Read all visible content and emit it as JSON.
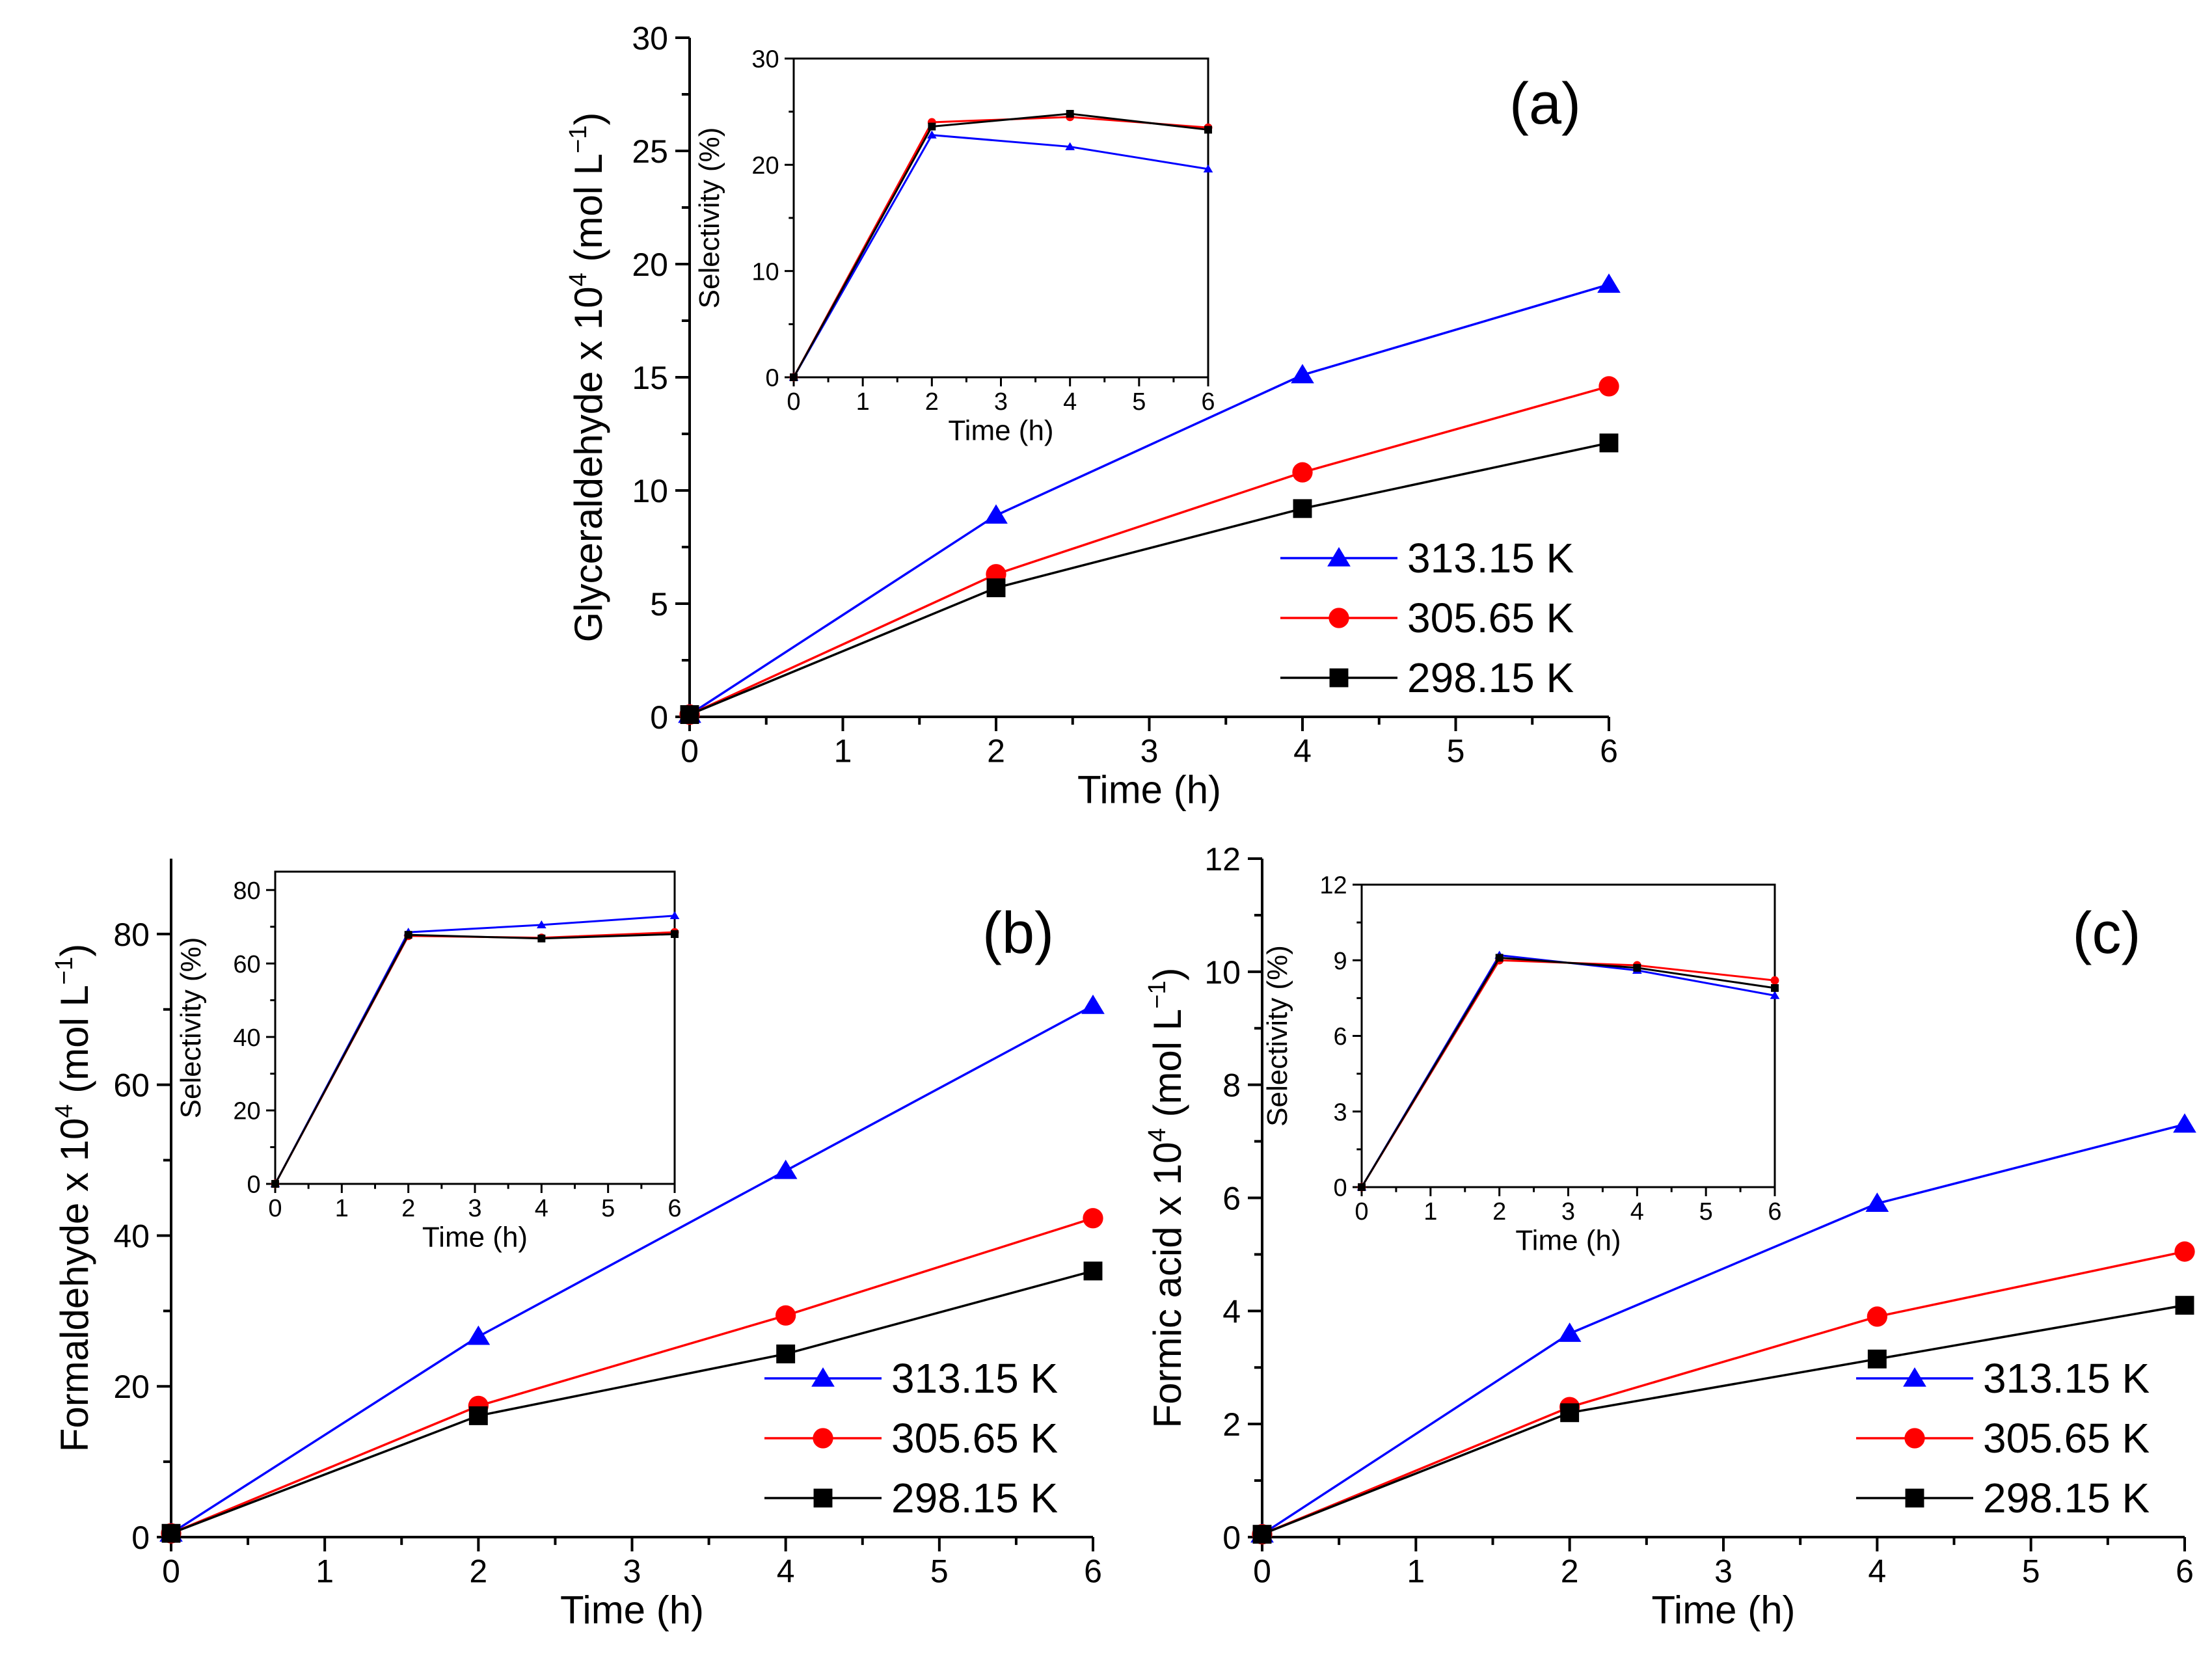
{
  "chart_data": [
    {
      "id": "a",
      "type": "line",
      "panel_label": "(a)",
      "xlabel": "Time (h)",
      "ylabel": "Glyceraldehyde x 10",
      "ylabel_sup": "4",
      "ylabel_unit": " (mol L",
      "ylabel_unit_sup": "−1",
      "ylabel_close": ")",
      "xlim": [
        0,
        6
      ],
      "ylim": [
        0,
        30
      ],
      "xticks": [
        0,
        1,
        2,
        3,
        4,
        5,
        6
      ],
      "yticks": [
        0,
        5,
        10,
        15,
        20,
        25,
        30
      ],
      "grid": false,
      "legend_position": "bottom-right",
      "series": [
        {
          "name": "313.15 K",
          "color": "#0000ff",
          "marker": "triangle",
          "x": [
            0,
            2,
            4,
            6
          ],
          "y": [
            0.1,
            8.9,
            15.1,
            19.1
          ]
        },
        {
          "name": "305.65 K",
          "color": "#ff0000",
          "marker": "circle",
          "x": [
            0,
            2,
            4,
            6
          ],
          "y": [
            0.1,
            6.3,
            10.8,
            14.6
          ]
        },
        {
          "name": "298.15 K",
          "color": "#000000",
          "marker": "square",
          "x": [
            0,
            2,
            4,
            6
          ],
          "y": [
            0.1,
            5.7,
            9.2,
            12.1
          ]
        }
      ],
      "inset": {
        "xlabel": "Time (h)",
        "ylabel": "Selectivity (%)",
        "xlim": [
          0,
          6
        ],
        "ylim": [
          0,
          30
        ],
        "xticks": [
          0,
          1,
          2,
          3,
          4,
          5,
          6
        ],
        "yticks": [
          0,
          10,
          20,
          30
        ],
        "series": [
          {
            "color": "#0000ff",
            "x": [
              0,
              2,
              4,
              6
            ],
            "y": [
              0,
              22.8,
              21.7,
              19.6
            ]
          },
          {
            "color": "#ff0000",
            "x": [
              0,
              2,
              4,
              6
            ],
            "y": [
              0,
              24.0,
              24.5,
              23.5
            ]
          },
          {
            "color": "#000000",
            "x": [
              0,
              2,
              4,
              6
            ],
            "y": [
              0,
              23.6,
              24.8,
              23.3
            ]
          }
        ]
      }
    },
    {
      "id": "b",
      "type": "line",
      "panel_label": "(b)",
      "xlabel": "Time (h)",
      "ylabel": "Formaldehyde  x 10",
      "ylabel_sup": "4",
      "ylabel_unit": " (mol L",
      "ylabel_unit_sup": "−1",
      "ylabel_close": ")",
      "xlim": [
        0,
        6
      ],
      "ylim": [
        0,
        90
      ],
      "xticks": [
        0,
        1,
        2,
        3,
        4,
        5,
        6
      ],
      "yticks": [
        0,
        20,
        40,
        60,
        80
      ],
      "grid": false,
      "legend_position": "bottom-right",
      "series": [
        {
          "name": "313.15 K",
          "color": "#0000ff",
          "marker": "triangle",
          "x": [
            0,
            2,
            4,
            6
          ],
          "y": [
            0.5,
            26.6,
            48.6,
            70.5
          ]
        },
        {
          "name": "305.65 K",
          "color": "#ff0000",
          "marker": "circle",
          "x": [
            0,
            2,
            4,
            6
          ],
          "y": [
            0.5,
            17.4,
            29.4,
            42.3
          ]
        },
        {
          "name": "298.15 K",
          "color": "#000000",
          "marker": "square",
          "x": [
            0,
            2,
            4,
            6
          ],
          "y": [
            0.5,
            16.1,
            24.3,
            35.3
          ]
        }
      ],
      "inset": {
        "xlabel": "Time (h)",
        "ylabel": "Selectivity (%)",
        "xlim": [
          0,
          6
        ],
        "ylim": [
          0,
          85
        ],
        "xticks": [
          0,
          1,
          2,
          3,
          4,
          5,
          6
        ],
        "yticks": [
          0,
          20,
          40,
          60,
          80
        ],
        "series": [
          {
            "color": "#0000ff",
            "x": [
              0,
              2,
              4,
              6
            ],
            "y": [
              0,
              68.5,
              70.5,
              73
            ]
          },
          {
            "color": "#ff0000",
            "x": [
              0,
              2,
              4,
              6
            ],
            "y": [
              0,
              67.5,
              67.0,
              68.5
            ]
          },
          {
            "color": "#000000",
            "x": [
              0,
              2,
              4,
              6
            ],
            "y": [
              0,
              67.8,
              66.8,
              68.0
            ]
          }
        ]
      }
    },
    {
      "id": "c",
      "type": "line",
      "panel_label": "(c)",
      "xlabel": "Time (h)",
      "ylabel": "Formic acid x 10",
      "ylabel_sup": "4",
      "ylabel_unit": " (mol L",
      "ylabel_unit_sup": "−1",
      "ylabel_close": ")",
      "xlim": [
        0,
        6
      ],
      "ylim": [
        0,
        12
      ],
      "xticks": [
        0,
        1,
        2,
        3,
        4,
        5,
        6
      ],
      "yticks": [
        0,
        2,
        4,
        6,
        8,
        10,
        12
      ],
      "grid": false,
      "legend_position": "bottom-right",
      "series": [
        {
          "name": "313.15 K",
          "color": "#0000ff",
          "marker": "triangle",
          "x": [
            0,
            2,
            4,
            6
          ],
          "y": [
            0.05,
            3.6,
            5.9,
            7.3
          ]
        },
        {
          "name": "305.65 K",
          "color": "#ff0000",
          "marker": "circle",
          "x": [
            0,
            2,
            4,
            6
          ],
          "y": [
            0.05,
            2.3,
            3.9,
            5.05
          ]
        },
        {
          "name": "298.15 K",
          "color": "#000000",
          "marker": "square",
          "x": [
            0,
            2,
            4,
            6
          ],
          "y": [
            0.05,
            2.2,
            3.15,
            4.1
          ]
        }
      ],
      "inset": {
        "xlabel": "Time (h)",
        "ylabel": "Selectivity (%)",
        "xlim": [
          0,
          6
        ],
        "ylim": [
          0,
          12
        ],
        "xticks": [
          0,
          1,
          2,
          3,
          4,
          5,
          6
        ],
        "yticks": [
          0,
          3,
          6,
          9,
          12
        ],
        "series": [
          {
            "color": "#0000ff",
            "x": [
              0,
              2,
              4,
              6
            ],
            "y": [
              0,
              9.2,
              8.6,
              7.6
            ]
          },
          {
            "color": "#ff0000",
            "x": [
              0,
              2,
              4,
              6
            ],
            "y": [
              0,
              9.0,
              8.8,
              8.2
            ]
          },
          {
            "color": "#000000",
            "x": [
              0,
              2,
              4,
              6
            ],
            "y": [
              0,
              9.1,
              8.7,
              7.9
            ]
          }
        ]
      }
    }
  ]
}
